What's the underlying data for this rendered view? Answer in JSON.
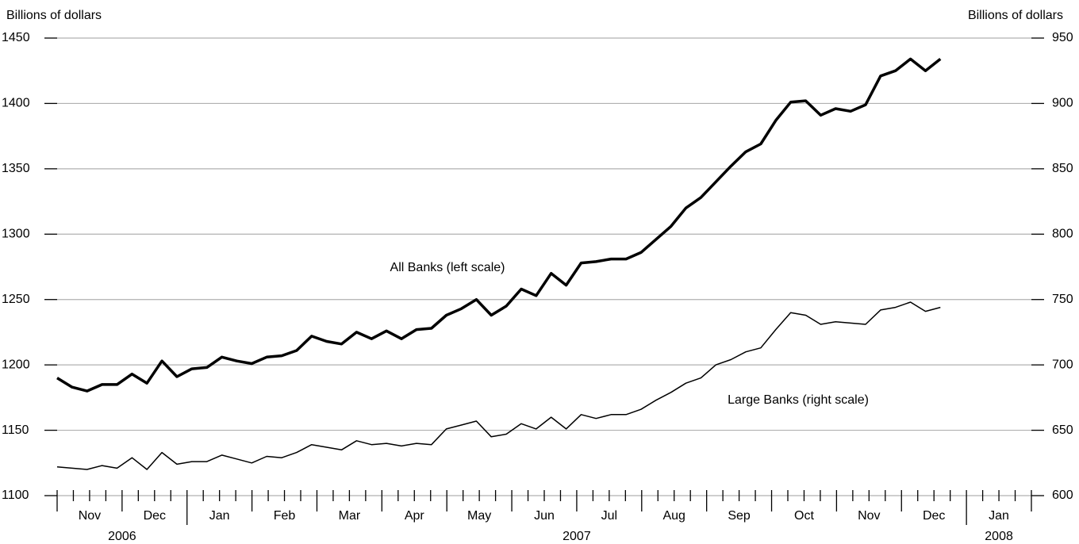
{
  "chart_data": {
    "type": "line",
    "y_label": "Billions of dollars",
    "y2_label": "Billions of dollars",
    "months": [
      "Nov",
      "Dec",
      "Jan",
      "Feb",
      "Mar",
      "Apr",
      "May",
      "Jun",
      "Jul",
      "Aug",
      "Sep",
      "Oct",
      "Nov",
      "Dec",
      "Jan"
    ],
    "years": [
      "2006",
      "2007",
      "2008"
    ],
    "ylim": [
      1100,
      1450
    ],
    "yticks": [
      1100,
      1150,
      1200,
      1250,
      1300,
      1350,
      1400,
      1450
    ],
    "y2lim": [
      600,
      950
    ],
    "y2ticks": [
      600,
      650,
      700,
      750,
      800,
      850,
      900,
      950
    ],
    "grid": true,
    "series": [
      {
        "name": "All Banks (left scale)",
        "color": "#000000",
        "axis": "y",
        "values": [
          1190,
          1183,
          1180,
          1185,
          1185,
          1193,
          1186,
          1203,
          1191,
          1197,
          1198,
          1206,
          1203,
          1201,
          1206,
          1207,
          1211,
          1222,
          1218,
          1216,
          1225,
          1220,
          1226,
          1220,
          1227,
          1228,
          1238,
          1243,
          1250,
          1238,
          1245,
          1258,
          1253,
          1270,
          1261,
          1278,
          1279,
          1281,
          1281,
          1286,
          1296,
          1306,
          1320,
          1328,
          1340,
          1352,
          1363,
          1369,
          1387,
          1401,
          1402,
          1391,
          1396,
          1394,
          1399,
          1421,
          1425,
          1434,
          1425,
          1434
        ]
      },
      {
        "name": "Large Banks (right scale)",
        "color": "#000000",
        "axis": "y2",
        "values": [
          622,
          621,
          620,
          623,
          621,
          629,
          620,
          633,
          624,
          626,
          626,
          631,
          628,
          625,
          630,
          629,
          633,
          639,
          637,
          635,
          642,
          639,
          640,
          638,
          640,
          639,
          651,
          654,
          657,
          645,
          647,
          655,
          651,
          660,
          651,
          662,
          659,
          662,
          662,
          666,
          673,
          679,
          686,
          690,
          700,
          704,
          710,
          713,
          727,
          740,
          738,
          731,
          733,
          732,
          731,
          742,
          744,
          748,
          741,
          744
        ]
      }
    ]
  }
}
